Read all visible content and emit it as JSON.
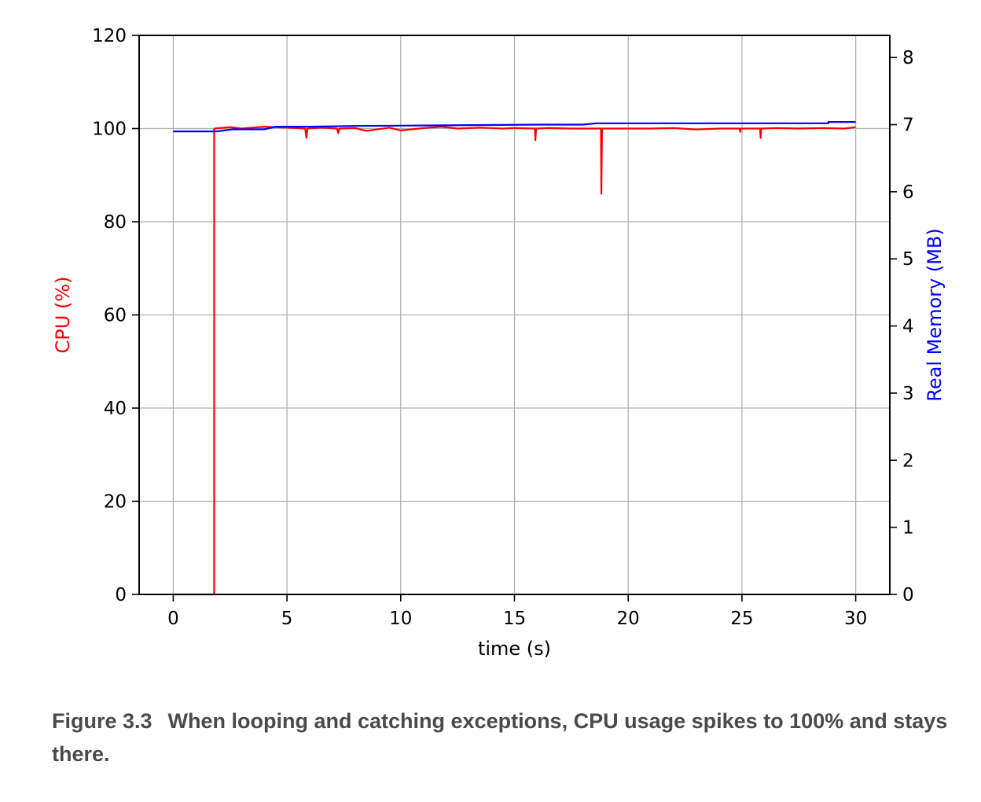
{
  "chart_data": {
    "type": "line",
    "title": "",
    "xlabel": "time (s)",
    "ylabel_left": "CPU (%)",
    "ylabel_right": "Real Memory (MB)",
    "xlim": [
      -1.5,
      31.5
    ],
    "ylim_left": [
      0,
      120
    ],
    "ylim_right": [
      0,
      8.33
    ],
    "x_ticks": [
      0,
      5,
      10,
      15,
      20,
      25,
      30
    ],
    "y_ticks_left": [
      0,
      20,
      40,
      60,
      80,
      100,
      120
    ],
    "y_ticks_right": [
      0,
      1,
      2,
      3,
      4,
      5,
      6,
      7,
      8
    ],
    "grid": true,
    "colors": {
      "cpu": "#ff0000",
      "memory": "#0000ff",
      "axis": "#000000",
      "grid": "#b0b0b0",
      "left_label": "#ff0000",
      "right_label": "#0000ff"
    },
    "series": [
      {
        "axis": "left",
        "points": [
          [
            0,
            0
          ],
          [
            1.8,
            0
          ],
          [
            1.8,
            100
          ],
          [
            2.5,
            100.3
          ],
          [
            3.0,
            100
          ],
          [
            4.0,
            100.4
          ],
          [
            5.0,
            100.2
          ],
          [
            5.8,
            100
          ],
          [
            5.85,
            98
          ],
          [
            5.9,
            100
          ],
          [
            6.5,
            100.2
          ],
          [
            7.2,
            100
          ],
          [
            7.25,
            99
          ],
          [
            7.3,
            100
          ],
          [
            8.0,
            100.1
          ],
          [
            8.5,
            99.5
          ],
          [
            9.5,
            100.2
          ],
          [
            10.0,
            99.6
          ],
          [
            11.0,
            100.1
          ],
          [
            11.8,
            100.4
          ],
          [
            12.5,
            100
          ],
          [
            13.5,
            100.2
          ],
          [
            14.5,
            100
          ],
          [
            15.0,
            100.1
          ],
          [
            15.9,
            100
          ],
          [
            15.92,
            97.5
          ],
          [
            15.95,
            100
          ],
          [
            16.5,
            100.1
          ],
          [
            17.5,
            100
          ],
          [
            18.8,
            100
          ],
          [
            18.82,
            86
          ],
          [
            18.85,
            100
          ],
          [
            20.0,
            100
          ],
          [
            21.0,
            100
          ],
          [
            22.0,
            100.1
          ],
          [
            23.0,
            99.8
          ],
          [
            24.0,
            100
          ],
          [
            24.9,
            100
          ],
          [
            24.92,
            99.3
          ],
          [
            24.95,
            100
          ],
          [
            25.8,
            100
          ],
          [
            25.82,
            98
          ],
          [
            25.85,
            100
          ],
          [
            26.5,
            100.1
          ],
          [
            27.5,
            100
          ],
          [
            28.5,
            100.1
          ],
          [
            29.5,
            100
          ],
          [
            30.0,
            100.3
          ]
        ]
      },
      {
        "axis": "right",
        "points": [
          [
            0,
            6.9
          ],
          [
            1.9,
            6.9
          ],
          [
            2.6,
            6.93
          ],
          [
            3.0,
            6.93
          ],
          [
            4.0,
            6.93
          ],
          [
            4.5,
            6.97
          ],
          [
            6.0,
            6.97
          ],
          [
            8.0,
            6.98
          ],
          [
            12.0,
            6.99
          ],
          [
            16.0,
            7.0
          ],
          [
            18.0,
            7.0
          ],
          [
            18.6,
            7.02
          ],
          [
            22.0,
            7.02
          ],
          [
            27.0,
            7.02
          ],
          [
            28.8,
            7.02
          ],
          [
            28.8,
            7.04
          ],
          [
            30.0,
            7.04
          ]
        ]
      }
    ]
  },
  "caption": {
    "number": "Figure 3.3",
    "text": "When looping and catching exceptions, CPU usage spikes to 100% and stays there."
  }
}
